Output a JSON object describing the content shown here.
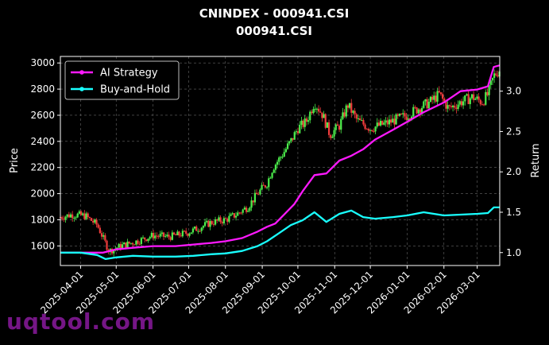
{
  "chart_data": {
    "type": "line",
    "title": "CNINDEX - 000941.CSI",
    "subtitle": "000941.CSI",
    "ylabel": "Price",
    "ylabel_right": "Return",
    "ylim": [
      1450,
      3050
    ],
    "ylim_right": [
      0.84,
      3.43
    ],
    "x_tick_labels": [
      "2025-04-01",
      "2025-05-01",
      "2025-06-01",
      "2025-07-01",
      "2025-08-01",
      "2025-09-01",
      "2025-10-01",
      "2025-11-01",
      "2025-12-01",
      "2026-01-01",
      "2026-02-01",
      "2026-03-01"
    ],
    "y_ticks": [
      1600,
      1800,
      2000,
      2200,
      2400,
      2600,
      2800,
      3000
    ],
    "y_ticks_right": [
      1.0,
      1.5,
      2.0,
      2.5,
      3.0
    ],
    "grid": true,
    "legend_position": "top-left",
    "x_start": "2025-03-15",
    "x_end": "2026-03-20",
    "price_points": [
      [
        "2025-03-15",
        1820
      ],
      [
        "2025-03-25",
        1840
      ],
      [
        "2025-04-05",
        1830
      ],
      [
        "2025-04-15",
        1760
      ],
      [
        "2025-04-25",
        1560
      ],
      [
        "2025-05-05",
        1600
      ],
      [
        "2025-05-20",
        1640
      ],
      [
        "2025-06-01",
        1680
      ],
      [
        "2025-06-15",
        1670
      ],
      [
        "2025-06-30",
        1700
      ],
      [
        "2025-07-10",
        1740
      ],
      [
        "2025-07-20",
        1780
      ],
      [
        "2025-08-01",
        1800
      ],
      [
        "2025-08-10",
        1840
      ],
      [
        "2025-08-20",
        1900
      ],
      [
        "2025-08-28",
        2000
      ],
      [
        "2025-09-05",
        2080
      ],
      [
        "2025-09-10",
        2200
      ],
      [
        "2025-09-18",
        2300
      ],
      [
        "2025-09-25",
        2400
      ],
      [
        "2025-10-01",
        2500
      ],
      [
        "2025-10-08",
        2550
      ],
      [
        "2025-10-15",
        2700
      ],
      [
        "2025-10-22",
        2600
      ],
      [
        "2025-10-28",
        2450
      ],
      [
        "2025-11-05",
        2520
      ],
      [
        "2025-11-12",
        2680
      ],
      [
        "2025-11-20",
        2560
      ],
      [
        "2025-12-01",
        2500
      ],
      [
        "2025-12-15",
        2540
      ],
      [
        "2026-01-01",
        2600
      ],
      [
        "2026-01-10",
        2650
      ],
      [
        "2026-01-20",
        2700
      ],
      [
        "2026-01-28",
        2760
      ],
      [
        "2026-02-05",
        2650
      ],
      [
        "2026-02-15",
        2700
      ],
      [
        "2026-02-25",
        2740
      ],
      [
        "2026-03-05",
        2700
      ],
      [
        "2026-03-10",
        2760
      ],
      [
        "2026-03-15",
        2900
      ],
      [
        "2026-03-20",
        2950
      ]
    ],
    "series": [
      {
        "name": "AI Strategy",
        "color": "#ff19ff",
        "points": [
          [
            "2025-03-15",
            1.0
          ],
          [
            "2025-04-01",
            1.0
          ],
          [
            "2025-04-20",
            1.0
          ],
          [
            "2025-05-01",
            1.04
          ],
          [
            "2025-05-15",
            1.06
          ],
          [
            "2025-06-01",
            1.08
          ],
          [
            "2025-06-20",
            1.08
          ],
          [
            "2025-07-05",
            1.1
          ],
          [
            "2025-07-20",
            1.12
          ],
          [
            "2025-08-01",
            1.14
          ],
          [
            "2025-08-15",
            1.18
          ],
          [
            "2025-08-28",
            1.26
          ],
          [
            "2025-09-05",
            1.32
          ],
          [
            "2025-09-12",
            1.36
          ],
          [
            "2025-09-20",
            1.48
          ],
          [
            "2025-09-28",
            1.6
          ],
          [
            "2025-10-05",
            1.76
          ],
          [
            "2025-10-15",
            1.96
          ],
          [
            "2025-10-25",
            1.98
          ],
          [
            "2025-11-05",
            2.14
          ],
          [
            "2025-11-15",
            2.2
          ],
          [
            "2025-11-25",
            2.28
          ],
          [
            "2025-12-05",
            2.4
          ],
          [
            "2025-12-20",
            2.52
          ],
          [
            "2026-01-01",
            2.62
          ],
          [
            "2026-01-15",
            2.74
          ],
          [
            "2026-02-01",
            2.86
          ],
          [
            "2026-02-15",
            3.0
          ],
          [
            "2026-03-01",
            3.02
          ],
          [
            "2026-03-10",
            3.06
          ],
          [
            "2026-03-15",
            3.3
          ],
          [
            "2026-03-20",
            3.32
          ]
        ]
      },
      {
        "name": "Buy-and-Hold",
        "color": "#19ffff",
        "points": [
          [
            "2025-03-15",
            1.0
          ],
          [
            "2025-04-01",
            1.0
          ],
          [
            "2025-04-15",
            0.97
          ],
          [
            "2025-04-22",
            0.92
          ],
          [
            "2025-05-01",
            0.94
          ],
          [
            "2025-05-15",
            0.96
          ],
          [
            "2025-06-01",
            0.95
          ],
          [
            "2025-06-20",
            0.95
          ],
          [
            "2025-07-05",
            0.96
          ],
          [
            "2025-07-20",
            0.98
          ],
          [
            "2025-08-01",
            0.99
          ],
          [
            "2025-08-15",
            1.02
          ],
          [
            "2025-08-28",
            1.08
          ],
          [
            "2025-09-05",
            1.14
          ],
          [
            "2025-09-15",
            1.24
          ],
          [
            "2025-09-25",
            1.34
          ],
          [
            "2025-10-05",
            1.4
          ],
          [
            "2025-10-15",
            1.5
          ],
          [
            "2025-10-25",
            1.38
          ],
          [
            "2025-11-05",
            1.48
          ],
          [
            "2025-11-15",
            1.52
          ],
          [
            "2025-11-25",
            1.44
          ],
          [
            "2025-12-05",
            1.42
          ],
          [
            "2025-12-20",
            1.44
          ],
          [
            "2026-01-01",
            1.46
          ],
          [
            "2026-01-15",
            1.5
          ],
          [
            "2026-02-01",
            1.46
          ],
          [
            "2026-02-15",
            1.47
          ],
          [
            "2026-03-01",
            1.48
          ],
          [
            "2026-03-10",
            1.49
          ],
          [
            "2026-03-15",
            1.56
          ],
          [
            "2026-03-20",
            1.56
          ]
        ]
      }
    ]
  },
  "watermark": "uqtool.com"
}
